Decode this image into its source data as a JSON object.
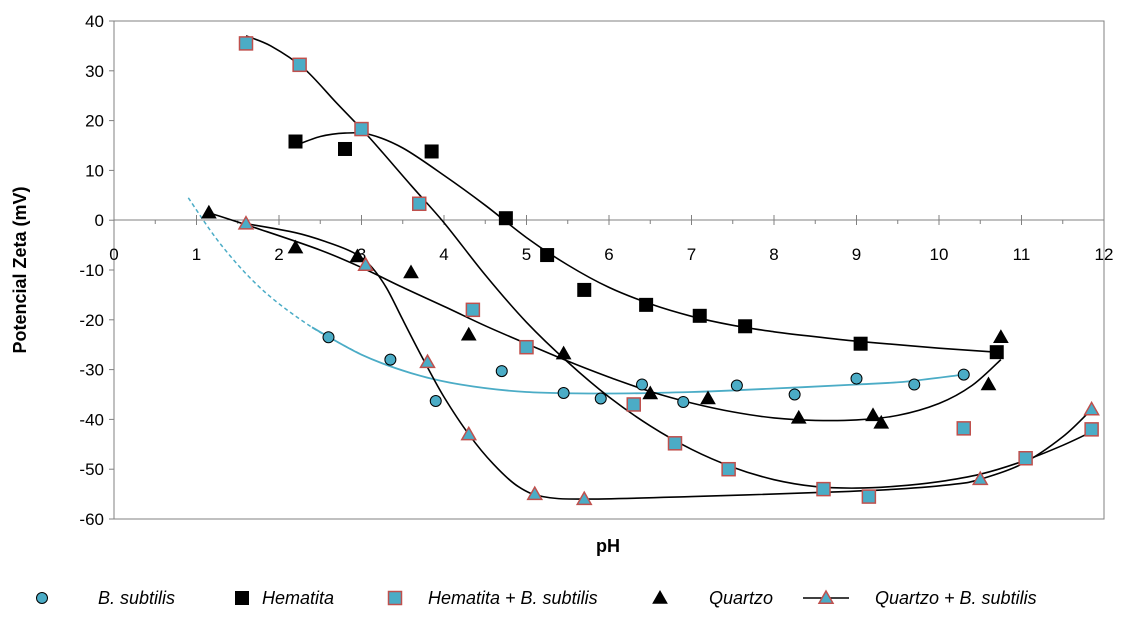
{
  "chart_data": {
    "type": "scatter",
    "title": "",
    "xlabel": "pH",
    "ylabel": "Potencial Zeta (mV)",
    "xlim": [
      0,
      12
    ],
    "ylim": [
      -60,
      40
    ],
    "x_ticks": [
      0,
      1,
      2,
      3,
      4,
      5,
      6,
      7,
      8,
      9,
      10,
      11,
      12
    ],
    "y_ticks": [
      40,
      30,
      20,
      10,
      0,
      -10,
      -20,
      -30,
      -40,
      -50,
      -60
    ],
    "grid": false,
    "legend_position": "bottom",
    "series": [
      {
        "name": "B. subtilis",
        "marker": "circle",
        "color": "#4bacc6",
        "points": [
          [
            2.6,
            -23.5
          ],
          [
            3.35,
            -28
          ],
          [
            3.9,
            -36.3
          ],
          [
            4.7,
            -30.3
          ],
          [
            5.45,
            -34.7
          ],
          [
            5.9,
            -35.8
          ],
          [
            6.4,
            -33
          ],
          [
            6.9,
            -36.5
          ],
          [
            7.55,
            -33.2
          ],
          [
            8.25,
            -35
          ],
          [
            9.0,
            -31.8
          ],
          [
            9.7,
            -33
          ],
          [
            10.3,
            -31
          ]
        ],
        "trend": [
          [
            0.9,
            4.5
          ],
          [
            1.3,
            -5
          ],
          [
            1.8,
            -14
          ],
          [
            2.4,
            -21.5
          ],
          [
            3.0,
            -27
          ],
          [
            3.6,
            -30.7
          ],
          [
            4.2,
            -33
          ],
          [
            5.0,
            -34.5
          ],
          [
            6.0,
            -34.8
          ],
          [
            7.0,
            -34.5
          ],
          [
            8.0,
            -33.8
          ],
          [
            9.0,
            -33
          ],
          [
            9.6,
            -32.4
          ],
          [
            10.3,
            -31
          ]
        ]
      },
      {
        "name": "Hematita",
        "marker": "square",
        "color": "#000000",
        "points": [
          [
            2.2,
            15.8
          ],
          [
            2.8,
            14.3
          ],
          [
            3.85,
            13.8
          ],
          [
            4.75,
            0.4
          ],
          [
            5.25,
            -7
          ],
          [
            5.7,
            -14
          ],
          [
            6.45,
            -17
          ],
          [
            7.1,
            -19.2
          ],
          [
            7.65,
            -21.3
          ],
          [
            9.05,
            -24.8
          ],
          [
            10.7,
            -26.5
          ]
        ],
        "trend": [
          [
            2.2,
            15
          ],
          [
            2.5,
            16.8
          ],
          [
            2.8,
            17.5
          ],
          [
            3.1,
            17.2
          ],
          [
            3.5,
            14.5
          ],
          [
            4.0,
            9
          ],
          [
            4.5,
            3
          ],
          [
            5.0,
            -3.5
          ],
          [
            5.5,
            -9
          ],
          [
            6.0,
            -13.5
          ],
          [
            6.5,
            -16.8
          ],
          [
            7.0,
            -19.3
          ],
          [
            7.5,
            -21.1
          ],
          [
            8.0,
            -22.4
          ],
          [
            8.5,
            -23.4
          ],
          [
            9.0,
            -24.3
          ],
          [
            9.5,
            -25
          ],
          [
            10.0,
            -25.7
          ],
          [
            10.7,
            -26.5
          ]
        ]
      },
      {
        "name": "Hematita + B. subtilis",
        "marker": "square",
        "color": "#4bacc6",
        "stroke": "#c0504d",
        "points": [
          [
            1.6,
            35.5
          ],
          [
            2.25,
            31.2
          ],
          [
            3.0,
            18.3
          ],
          [
            3.7,
            3.3
          ],
          [
            4.35,
            -18
          ],
          [
            5.0,
            -25.5
          ],
          [
            6.3,
            -37
          ],
          [
            6.8,
            -44.8
          ],
          [
            7.45,
            -50
          ],
          [
            8.6,
            -54
          ],
          [
            9.15,
            -55.5
          ],
          [
            10.3,
            -41.8
          ],
          [
            11.05,
            -47.8
          ],
          [
            11.85,
            -42
          ]
        ],
        "trend": [
          [
            1.6,
            37
          ],
          [
            1.9,
            35
          ],
          [
            2.3,
            30.5
          ],
          [
            2.7,
            23.5
          ],
          [
            3.1,
            16.5
          ],
          [
            3.6,
            7
          ],
          [
            4.0,
            -0.5
          ],
          [
            4.5,
            -11
          ],
          [
            5.0,
            -20.5
          ],
          [
            5.5,
            -28.5
          ],
          [
            6.0,
            -35.5
          ],
          [
            6.5,
            -41.3
          ],
          [
            7.0,
            -46
          ],
          [
            7.5,
            -49.6
          ],
          [
            8.0,
            -52.1
          ],
          [
            8.5,
            -53.5
          ],
          [
            9.0,
            -53.8
          ],
          [
            9.5,
            -53.4
          ],
          [
            10.0,
            -52.5
          ],
          [
            10.5,
            -51
          ],
          [
            11.0,
            -48.5
          ],
          [
            11.5,
            -45.2
          ],
          [
            11.85,
            -42.5
          ]
        ]
      },
      {
        "name": "Quartzo",
        "marker": "triangle",
        "color": "#000000",
        "points": [
          [
            1.15,
            1.5
          ],
          [
            2.2,
            -5.5
          ],
          [
            2.95,
            -7.3
          ],
          [
            3.6,
            -10.5
          ],
          [
            4.3,
            -23
          ],
          [
            5.45,
            -26.8
          ],
          [
            6.5,
            -34.8
          ],
          [
            7.2,
            -35.8
          ],
          [
            8.3,
            -39.7
          ],
          [
            9.2,
            -39.2
          ],
          [
            9.3,
            -40.7
          ],
          [
            10.6,
            -33
          ],
          [
            10.75,
            -23.5
          ]
        ],
        "trend": [
          [
            1.15,
            1.5
          ],
          [
            1.8,
            -2
          ],
          [
            2.5,
            -6
          ],
          [
            3.0,
            -9.5
          ],
          [
            3.5,
            -13.5
          ],
          [
            4.0,
            -17.3
          ],
          [
            4.5,
            -21.2
          ],
          [
            5.0,
            -24.8
          ],
          [
            5.5,
            -28.3
          ],
          [
            6.0,
            -31.5
          ],
          [
            6.5,
            -34.4
          ],
          [
            7.0,
            -36.7
          ],
          [
            7.5,
            -38.5
          ],
          [
            8.0,
            -39.7
          ],
          [
            8.5,
            -40.2
          ],
          [
            9.0,
            -40.1
          ],
          [
            9.5,
            -39.2
          ],
          [
            10.0,
            -36.8
          ],
          [
            10.4,
            -33.2
          ],
          [
            10.75,
            -28
          ]
        ]
      },
      {
        "name": "Quartzo + B. subtilis",
        "marker": "triangle",
        "color": "#4bacc6",
        "stroke": "#c0504d",
        "points": [
          [
            1.6,
            -0.7
          ],
          [
            3.05,
            -9
          ],
          [
            3.8,
            -28.5
          ],
          [
            4.3,
            -43
          ],
          [
            5.1,
            -55
          ],
          [
            5.7,
            -56
          ],
          [
            10.5,
            -52
          ],
          [
            11.85,
            -38
          ]
        ],
        "trend": [
          [
            1.6,
            -0.7
          ],
          [
            2.2,
            -2.5
          ],
          [
            2.6,
            -4.5
          ],
          [
            2.9,
            -6.5
          ],
          [
            3.1,
            -9
          ],
          [
            3.3,
            -13.5
          ],
          [
            3.5,
            -20
          ],
          [
            3.75,
            -28
          ],
          [
            4.0,
            -35.5
          ],
          [
            4.3,
            -43
          ],
          [
            4.6,
            -49
          ],
          [
            4.9,
            -53.5
          ],
          [
            5.2,
            -55.5
          ],
          [
            5.7,
            -56
          ],
          [
            7.0,
            -55.5
          ],
          [
            8.5,
            -54.7
          ],
          [
            9.5,
            -54
          ],
          [
            10.2,
            -53
          ],
          [
            10.5,
            -52
          ],
          [
            11.0,
            -49
          ],
          [
            11.5,
            -43.5
          ],
          [
            11.85,
            -38
          ]
        ]
      }
    ]
  }
}
